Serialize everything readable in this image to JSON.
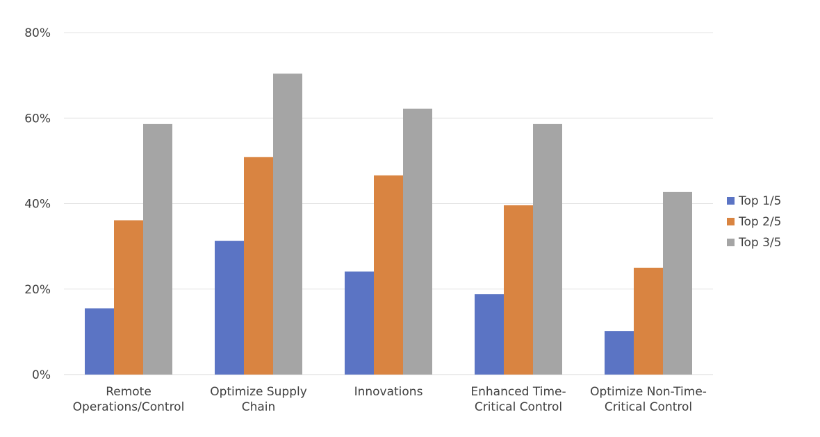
{
  "chart_data": {
    "type": "bar",
    "title": "",
    "xlabel": "",
    "ylabel": "",
    "categories": [
      [
        "Remote",
        "Operations/Control"
      ],
      [
        "Optimize Supply",
        "Chain"
      ],
      [
        "Innovations"
      ],
      [
        "Enhanced Time-",
        "Critical Control"
      ],
      [
        "Optimize Non-Time-",
        "Critical Control"
      ]
    ],
    "series": [
      {
        "name": "Top 1/5",
        "color": "#5b74c4",
        "values": [
          15.5,
          31.3,
          24.1,
          18.8,
          10.2
        ]
      },
      {
        "name": "Top 2/5",
        "color": "#d98441",
        "values": [
          36.1,
          50.9,
          46.6,
          39.6,
          25.0
        ]
      },
      {
        "name": "Top 3/5",
        "color": "#a5a5a5",
        "values": [
          58.6,
          70.4,
          62.2,
          58.6,
          42.7
        ]
      }
    ],
    "ylim": [
      0,
      80
    ],
    "yticks": [
      0,
      20,
      40,
      60,
      80
    ],
    "ytick_labels": [
      "0%",
      "20%",
      "40%",
      "60%",
      "80%"
    ],
    "grid": true,
    "legend": "right"
  }
}
